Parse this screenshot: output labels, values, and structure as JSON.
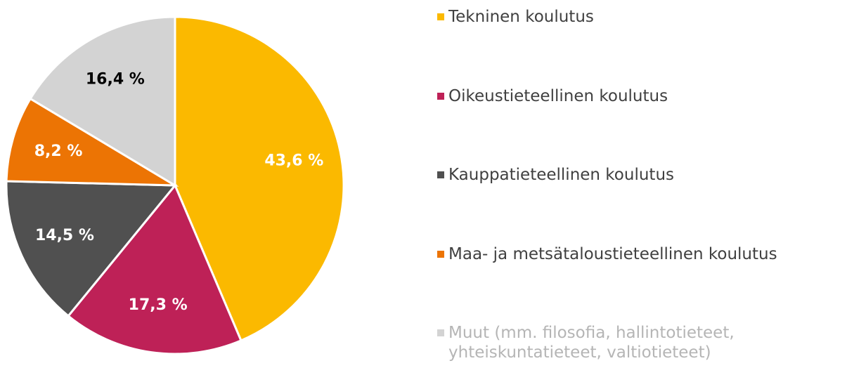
{
  "chart_data": {
    "type": "pie",
    "categories": [
      "Tekninen koulutus",
      "Oikeustieteellinen koulutus",
      "Kauppatieteellinen koulutus",
      "Maa- ja metsätaloustieteellinen koulutus",
      "Muut (mm. filosofia, hallintotieteet, yhteiskuntatieteet, valtiotieteet)"
    ],
    "values": [
      43.6,
      17.3,
      14.5,
      8.2,
      16.4
    ],
    "value_labels": [
      "43,6 %",
      "17,3 %",
      "14,5 %",
      "8,2 %",
      "16,4 %"
    ],
    "colors": [
      "#FBB900",
      "#BE2157",
      "#505050",
      "#EC7404",
      "#D3D3D3"
    ],
    "label_colors": [
      "#ffffff",
      "#ffffff",
      "#ffffff",
      "#ffffff",
      "#000000"
    ],
    "legend": "right"
  }
}
